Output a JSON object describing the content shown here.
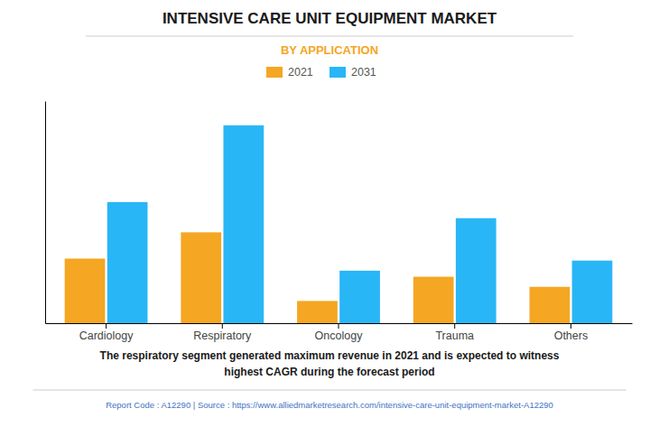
{
  "chart_data": {
    "type": "bar",
    "title": "INTENSIVE CARE UNIT EQUIPMENT MARKET",
    "subtitle": "BY APPLICATION",
    "categories": [
      "Cardiology",
      "Respiratory",
      "Oncology",
      "Trauma",
      "Others"
    ],
    "series": [
      {
        "name": "2021",
        "color": "#F5A623",
        "values": [
          3.2,
          4.5,
          1.1,
          2.3,
          1.8
        ]
      },
      {
        "name": "2031",
        "color": "#29B6F6",
        "values": [
          6.0,
          9.8,
          2.6,
          5.2,
          3.1
        ]
      }
    ],
    "annotations": [
      "The respiratory segment generated maximum revenue in 2021 and is expected to witness",
      "highest CAGR during the forecast period",
      "Report Code : A12290  |  Source : https://www.alliedmarketresearch.com/intensive-care-unit-equipment-market-A12290"
    ],
    "ylim": [
      0,
      11
    ],
    "yticks": [],
    "grid": false,
    "tick_labels": "x",
    "legend": "top"
  }
}
